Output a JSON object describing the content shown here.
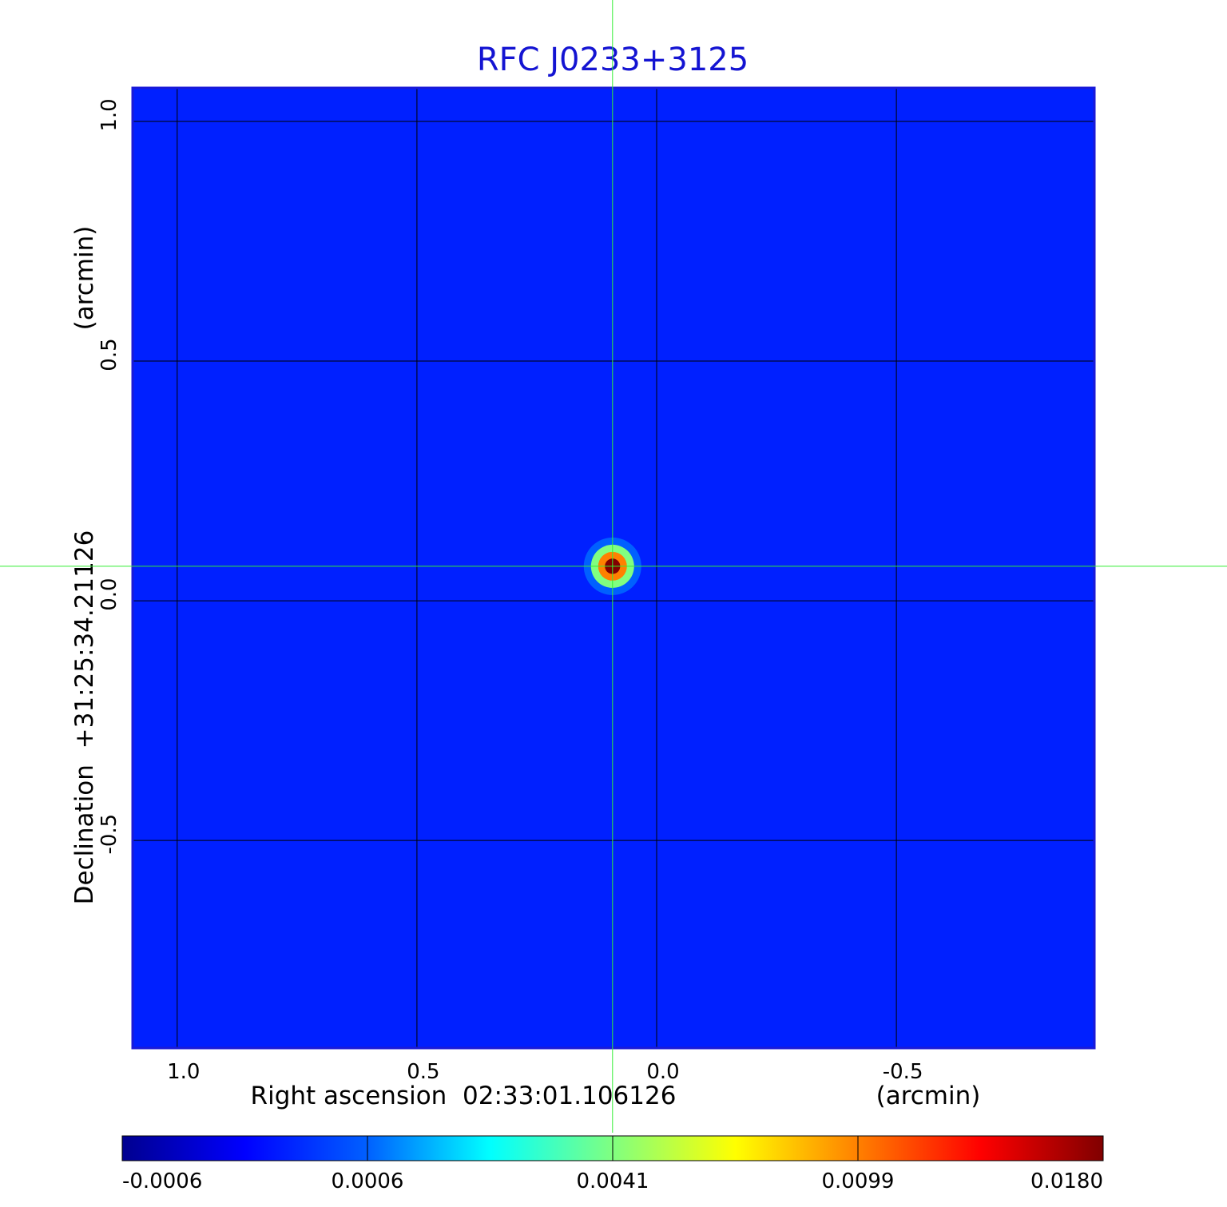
{
  "chart_data": {
    "type": "image",
    "title": "RFC J0233+3125",
    "title_color": "#1414d2",
    "frame_color": "#1a1ad8",
    "x_label": "Right ascension  02:33:01.106126",
    "x_unit": "(arcmin)",
    "y_label": "Declination  +31:25:34.21126",
    "y_unit": "(arcmin)",
    "xlim": [
      1.093,
      -0.913
    ],
    "ylim": [
      -0.933,
      1.07
    ],
    "xticks": [
      {
        "value": 1,
        "label": "1.0"
      },
      0.5,
      {
        "value": 0,
        "label": "0.0"
      },
      -0.5
    ],
    "yticks": [
      {
        "value": 1,
        "label": "1.0"
      },
      0.5,
      {
        "value": 0,
        "label": "0.0"
      },
      -0.5
    ],
    "grid": true,
    "background_value": 0.0002,
    "source": {
      "x": 0.092,
      "y": 0.072,
      "levels": [
        {
          "value": 0.0006,
          "radius": 0.06
        },
        {
          "value": 0.0041,
          "radius": 0.045
        },
        {
          "value": 0.0099,
          "radius": 0.03
        },
        {
          "value": 0.018,
          "radius": 0.016
        }
      ]
    },
    "crosshair": {
      "x": 0.092,
      "y": 0.072,
      "color": "#33ee33"
    },
    "colorbar": {
      "ticks": [
        {
          "value": -0.0006,
          "label": "-0.0006"
        },
        {
          "value": 0.0006,
          "label": "0.0006"
        },
        {
          "value": 0.0041,
          "label": "0.0041"
        },
        {
          "value": 0.0099,
          "label": "0.0099"
        },
        {
          "value": 0.018,
          "label": "0.0180"
        }
      ],
      "colors": [
        "#00008f",
        "#0000ff",
        "#0060ff",
        "#00ffff",
        "#80ff80",
        "#ffff00",
        "#ff8000",
        "#ff0000",
        "#800000"
      ]
    }
  }
}
